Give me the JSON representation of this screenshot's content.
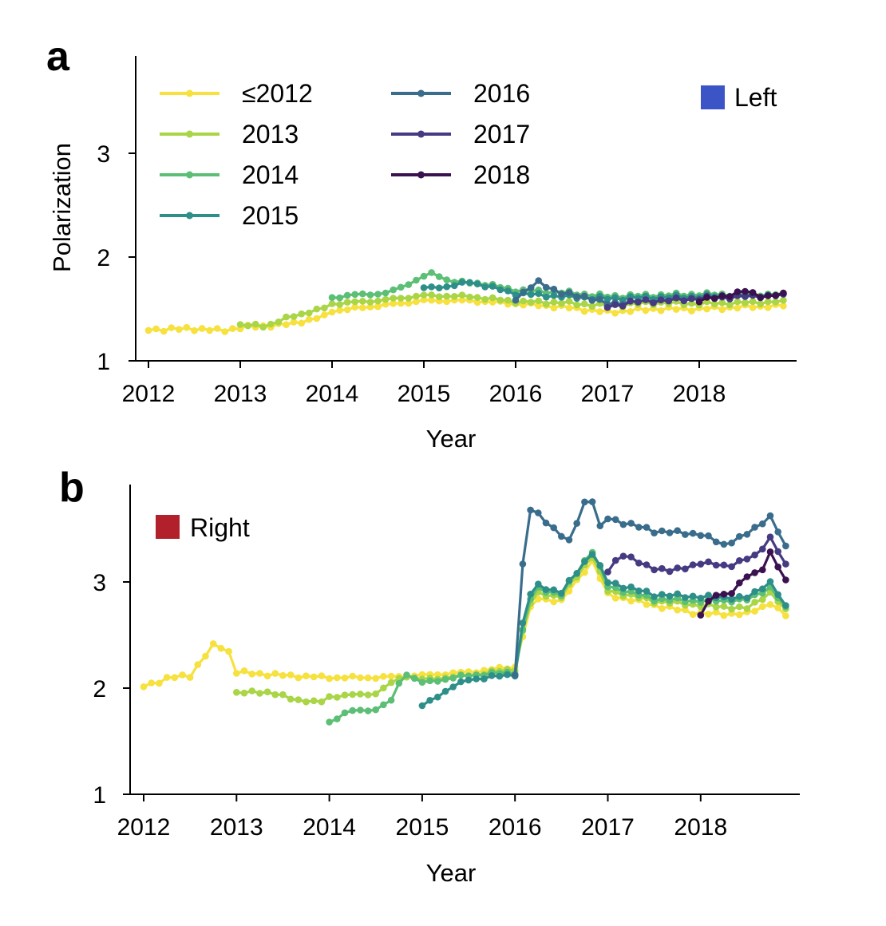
{
  "figure": {
    "panel_a_label": "a",
    "panel_b_label": "b",
    "legend_years": [
      {
        "label": "≤2012",
        "color": "#f6e13f"
      },
      {
        "label": "2013",
        "color": "#a9d546"
      },
      {
        "label": "2014",
        "color": "#5cbf75"
      },
      {
        "label": "2015",
        "color": "#2e8f89"
      },
      {
        "label": "2016",
        "color": "#3a6d8c"
      },
      {
        "label": "2017",
        "color": "#453b82"
      },
      {
        "label": "2018",
        "color": "#3b1250"
      }
    ],
    "left_label": "Left",
    "left_color": "#3b55c6",
    "right_label": "Right",
    "right_color": "#b2212b"
  },
  "chart_data": [
    {
      "panel": "a",
      "type": "line",
      "xlabel": "Year",
      "ylabel": "Polarization",
      "xlim": [
        2011.9,
        2019.0
      ],
      "ylim": [
        1,
        3.95
      ],
      "xticks": [
        2012,
        2013,
        2014,
        2015,
        2016,
        2017,
        2018
      ],
      "yticks": [
        1,
        2,
        3
      ],
      "legend": "top-right",
      "legend_label": "Left",
      "series": [
        {
          "name": "≤2012",
          "color": "#f6e13f",
          "x_start": 2012.0,
          "step_months": 1,
          "anchors": [
            [
              2012.0,
              1.3
            ],
            [
              2012.5,
              1.31
            ],
            [
              2012.8,
              1.29
            ],
            [
              2013.0,
              1.32
            ],
            [
              2013.5,
              1.35
            ],
            [
              2013.9,
              1.42
            ],
            [
              2014.0,
              1.48
            ],
            [
              2014.5,
              1.53
            ],
            [
              2015.0,
              1.58
            ],
            [
              2015.5,
              1.58
            ],
            [
              2016.0,
              1.55
            ],
            [
              2016.5,
              1.52
            ],
            [
              2017.0,
              1.47
            ],
            [
              2017.5,
              1.5
            ],
            [
              2018.0,
              1.5
            ],
            [
              2018.5,
              1.52
            ],
            [
              2018.92,
              1.53
            ]
          ]
        },
        {
          "name": "2013",
          "color": "#a9d546",
          "x_start": 2013.0,
          "step_months": 1,
          "anchors": [
            [
              2013.0,
              1.34
            ],
            [
              2013.3,
              1.34
            ],
            [
              2013.6,
              1.44
            ],
            [
              2013.9,
              1.5
            ],
            [
              2014.0,
              1.55
            ],
            [
              2014.5,
              1.58
            ],
            [
              2015.0,
              1.63
            ],
            [
              2015.5,
              1.62
            ],
            [
              2016.0,
              1.57
            ],
            [
              2016.5,
              1.56
            ],
            [
              2017.0,
              1.53
            ],
            [
              2017.5,
              1.56
            ],
            [
              2018.0,
              1.55
            ],
            [
              2018.5,
              1.56
            ],
            [
              2018.92,
              1.57
            ]
          ]
        },
        {
          "name": "2014",
          "color": "#5cbf75",
          "x_start": 2014.0,
          "step_months": 1,
          "anchors": [
            [
              2014.0,
              1.61
            ],
            [
              2014.3,
              1.64
            ],
            [
              2014.6,
              1.65
            ],
            [
              2014.8,
              1.73
            ],
            [
              2015.1,
              1.85
            ],
            [
              2015.3,
              1.76
            ],
            [
              2015.6,
              1.75
            ],
            [
              2016.0,
              1.68
            ],
            [
              2016.5,
              1.66
            ],
            [
              2017.0,
              1.62
            ],
            [
              2017.5,
              1.63
            ],
            [
              2018.0,
              1.64
            ],
            [
              2018.5,
              1.64
            ],
            [
              2018.92,
              1.64
            ]
          ]
        },
        {
          "name": "2015",
          "color": "#2e8f89",
          "x_start": 2015.0,
          "step_months": 1,
          "anchors": [
            [
              2015.0,
              1.7
            ],
            [
              2015.3,
              1.72
            ],
            [
              2015.5,
              1.76
            ],
            [
              2016.0,
              1.65
            ],
            [
              2016.5,
              1.62
            ],
            [
              2017.0,
              1.6
            ],
            [
              2017.5,
              1.61
            ],
            [
              2018.0,
              1.62
            ],
            [
              2018.5,
              1.63
            ],
            [
              2018.92,
              1.63
            ]
          ]
        },
        {
          "name": "2016",
          "color": "#3a6d8c",
          "x_start": 2016.0,
          "step_months": 1,
          "anchors": [
            [
              2016.0,
              1.6
            ],
            [
              2016.25,
              1.76
            ],
            [
              2016.5,
              1.65
            ],
            [
              2016.75,
              1.62
            ],
            [
              2017.0,
              1.55
            ],
            [
              2017.5,
              1.58
            ],
            [
              2018.0,
              1.6
            ],
            [
              2018.5,
              1.62
            ],
            [
              2018.92,
              1.63
            ]
          ]
        },
        {
          "name": "2017",
          "color": "#453b82",
          "x_start": 2017.0,
          "step_months": 1,
          "anchors": [
            [
              2017.0,
              1.52
            ],
            [
              2017.3,
              1.57
            ],
            [
              2017.6,
              1.58
            ],
            [
              2018.0,
              1.6
            ],
            [
              2018.5,
              1.62
            ],
            [
              2018.92,
              1.63
            ]
          ]
        },
        {
          "name": "2018",
          "color": "#3b1250",
          "x_start": 2018.0,
          "step_months": 1,
          "anchors": [
            [
              2018.0,
              1.58
            ],
            [
              2018.3,
              1.63
            ],
            [
              2018.5,
              1.67
            ],
            [
              2018.7,
              1.62
            ],
            [
              2018.92,
              1.64
            ]
          ]
        }
      ]
    },
    {
      "panel": "b",
      "type": "line",
      "xlabel": "Year",
      "ylabel": "",
      "xlim": [
        2011.9,
        2019.0
      ],
      "ylim": [
        1,
        3.95
      ],
      "xticks": [
        2012,
        2013,
        2014,
        2015,
        2016,
        2017,
        2018
      ],
      "yticks": [
        1,
        2,
        3
      ],
      "legend": "top-left",
      "legend_label": "Right",
      "series": [
        {
          "name": "≤2012",
          "color": "#f6e13f",
          "x_start": 2012.0,
          "step_months": 1,
          "anchors": [
            [
              2012.0,
              2.02
            ],
            [
              2012.3,
              2.1
            ],
            [
              2012.5,
              2.12
            ],
            [
              2012.75,
              2.4
            ],
            [
              2012.9,
              2.38
            ],
            [
              2013.0,
              2.15
            ],
            [
              2013.5,
              2.12
            ],
            [
              2014.0,
              2.1
            ],
            [
              2014.5,
              2.1
            ],
            [
              2015.0,
              2.12
            ],
            [
              2015.5,
              2.15
            ],
            [
              2016.0,
              2.2
            ],
            [
              2016.1,
              2.55
            ],
            [
              2016.2,
              2.85
            ],
            [
              2016.5,
              2.82
            ],
            [
              2016.83,
              3.2
            ],
            [
              2017.0,
              2.88
            ],
            [
              2017.5,
              2.78
            ],
            [
              2018.0,
              2.7
            ],
            [
              2018.5,
              2.7
            ],
            [
              2018.75,
              2.8
            ],
            [
              2018.92,
              2.68
            ]
          ]
        },
        {
          "name": "2013",
          "color": "#a9d546",
          "x_start": 2013.0,
          "step_months": 1,
          "anchors": [
            [
              2013.0,
              1.95
            ],
            [
              2013.3,
              1.97
            ],
            [
              2013.6,
              1.9
            ],
            [
              2013.9,
              1.86
            ],
            [
              2014.0,
              1.92
            ],
            [
              2014.5,
              1.95
            ],
            [
              2014.8,
              2.12
            ],
            [
              2015.0,
              2.08
            ],
            [
              2015.5,
              2.12
            ],
            [
              2016.0,
              2.18
            ],
            [
              2016.1,
              2.6
            ],
            [
              2016.2,
              2.9
            ],
            [
              2016.5,
              2.86
            ],
            [
              2016.83,
              3.25
            ],
            [
              2017.0,
              2.92
            ],
            [
              2017.5,
              2.82
            ],
            [
              2018.0,
              2.78
            ],
            [
              2018.5,
              2.75
            ],
            [
              2018.75,
              2.9
            ],
            [
              2018.92,
              2.73
            ]
          ]
        },
        {
          "name": "2014",
          "color": "#5cbf75",
          "x_start": 2014.0,
          "step_months": 1,
          "anchors": [
            [
              2014.0,
              1.68
            ],
            [
              2014.2,
              1.78
            ],
            [
              2014.5,
              1.8
            ],
            [
              2014.67,
              1.88
            ],
            [
              2014.8,
              2.15
            ],
            [
              2015.0,
              2.05
            ],
            [
              2015.5,
              2.12
            ],
            [
              2016.0,
              2.15
            ],
            [
              2016.1,
              2.62
            ],
            [
              2016.2,
              2.95
            ],
            [
              2016.5,
              2.88
            ],
            [
              2016.83,
              3.3
            ],
            [
              2017.0,
              2.96
            ],
            [
              2017.5,
              2.84
            ],
            [
              2018.0,
              2.82
            ],
            [
              2018.5,
              2.83
            ],
            [
              2018.75,
              2.95
            ],
            [
              2018.92,
              2.75
            ]
          ]
        },
        {
          "name": "2015",
          "color": "#2e8f89",
          "x_start": 2015.0,
          "step_months": 1,
          "anchors": [
            [
              2015.0,
              1.83
            ],
            [
              2015.3,
              2.0
            ],
            [
              2015.5,
              2.08
            ],
            [
              2016.0,
              2.13
            ],
            [
              2016.1,
              2.7
            ],
            [
              2016.2,
              2.98
            ],
            [
              2016.5,
              2.9
            ],
            [
              2016.83,
              3.28
            ],
            [
              2017.0,
              3.0
            ],
            [
              2017.5,
              2.88
            ],
            [
              2018.0,
              2.86
            ],
            [
              2018.5,
              2.85
            ],
            [
              2018.75,
              3.0
            ],
            [
              2018.92,
              2.76
            ]
          ]
        },
        {
          "name": "2016",
          "color": "#3a6d8c",
          "x_start": 2016.0,
          "step_months": 1,
          "anchors": [
            [
              2016.0,
              2.14
            ],
            [
              2016.08,
              3.14
            ],
            [
              2016.17,
              3.7
            ],
            [
              2016.4,
              3.52
            ],
            [
              2016.58,
              3.37
            ],
            [
              2016.75,
              3.75
            ],
            [
              2016.83,
              3.78
            ],
            [
              2016.92,
              3.5
            ],
            [
              2017.0,
              3.6
            ],
            [
              2017.5,
              3.48
            ],
            [
              2018.0,
              3.45
            ],
            [
              2018.25,
              3.35
            ],
            [
              2018.5,
              3.45
            ],
            [
              2018.75,
              3.62
            ],
            [
              2018.92,
              3.32
            ]
          ]
        },
        {
          "name": "2017",
          "color": "#453b82",
          "x_start": 2017.0,
          "step_months": 1,
          "anchors": [
            [
              2017.0,
              3.1
            ],
            [
              2017.15,
              3.27
            ],
            [
              2017.4,
              3.15
            ],
            [
              2017.7,
              3.1
            ],
            [
              2018.0,
              3.18
            ],
            [
              2018.3,
              3.15
            ],
            [
              2018.6,
              3.25
            ],
            [
              2018.75,
              3.42
            ],
            [
              2018.92,
              3.15
            ]
          ]
        },
        {
          "name": "2018",
          "color": "#3b1250",
          "x_start": 2018.0,
          "step_months": 1,
          "anchors": [
            [
              2018.0,
              2.7
            ],
            [
              2018.15,
              2.88
            ],
            [
              2018.3,
              2.88
            ],
            [
              2018.5,
              3.05
            ],
            [
              2018.65,
              3.1
            ],
            [
              2018.75,
              3.28
            ],
            [
              2018.92,
              3.0
            ]
          ]
        }
      ]
    }
  ]
}
